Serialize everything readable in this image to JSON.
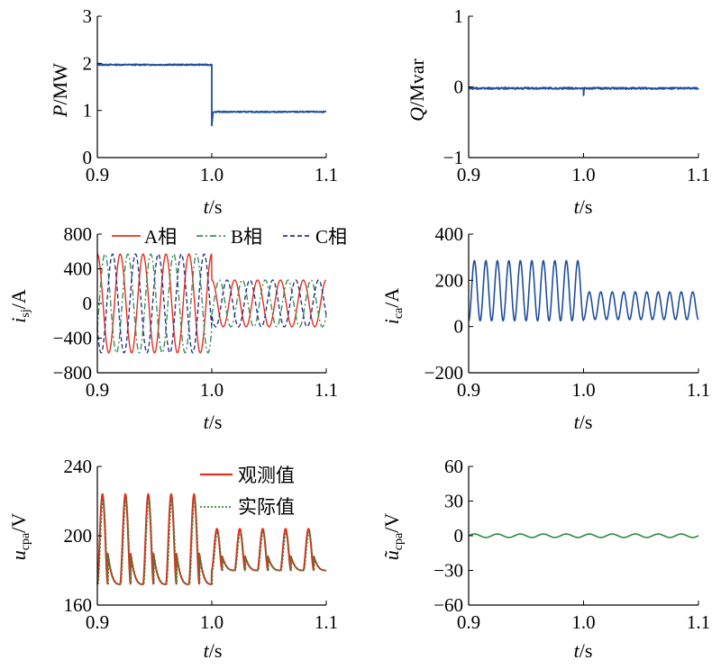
{
  "colors": {
    "blue": "#1f4e9c",
    "red": "#e03020",
    "green": "#2e8b3e",
    "navy": "#27368a",
    "tealgreen": "#3a8f5c"
  },
  "chart_data": [
    {
      "id": "p",
      "type": "line",
      "xlim": [
        0.9,
        1.1
      ],
      "ylim": [
        0,
        3
      ],
      "xticks": [
        "0.9",
        "1.0",
        "1.1"
      ],
      "yticks": [
        "0",
        "1",
        "2",
        "3"
      ],
      "xlabel": {
        "italic": "t",
        "rest": "/s"
      },
      "ylabel": {
        "italic": "P",
        "rest": "/MW"
      },
      "series": [
        {
          "color": "#1f4e9c",
          "x": [
            0.9,
            1.0,
            1.0,
            1.001,
            1.002,
            1.1
          ],
          "y": [
            1.97,
            1.97,
            0.68,
            0.95,
            0.97,
            0.97
          ]
        }
      ]
    },
    {
      "id": "q",
      "type": "line",
      "xlim": [
        0.9,
        1.1
      ],
      "ylim": [
        -1,
        1
      ],
      "xticks": [
        "0.9",
        "1.0",
        "1.1"
      ],
      "yticks": [
        "−1",
        "0",
        "1"
      ],
      "xlabel": {
        "italic": "t",
        "rest": "/s"
      },
      "ylabel": {
        "italic": "Q",
        "rest": "/Mvar"
      },
      "series": [
        {
          "color": "#1f4e9c",
          "x": [
            0.9,
            1.0,
            1.0,
            1.0005,
            1.001,
            1.1
          ],
          "y": [
            -0.02,
            -0.02,
            -0.12,
            -0.03,
            -0.02,
            -0.02
          ]
        }
      ]
    },
    {
      "id": "isj",
      "type": "line",
      "xlim": [
        0.9,
        1.1
      ],
      "ylim": [
        -800,
        800
      ],
      "xticks": [
        "0.9",
        "1.0",
        "1.1"
      ],
      "yticks": [
        "−800",
        "−400",
        "0",
        "400",
        "800"
      ],
      "xlabel": {
        "italic": "t",
        "rest": "/s"
      },
      "ylabel": {
        "italic": "i",
        "sub": "sj",
        "rest": "/A"
      },
      "legend": [
        "A相",
        "B相",
        "C相"
      ],
      "series": [
        {
          "name": "A相",
          "color": "#e03020",
          "amplitude_before": 570,
          "amplitude_after": 270,
          "frequency_hz": 50,
          "phase_deg": 90
        },
        {
          "name": "B相",
          "color": "#3a8f5c",
          "amplitude_before": 570,
          "amplitude_after": 270,
          "frequency_hz": 50,
          "phase_deg": -30
        },
        {
          "name": "C相",
          "color": "#27368a",
          "amplitude_before": 570,
          "amplitude_after": 270,
          "frequency_hz": 50,
          "phase_deg": 210
        }
      ]
    },
    {
      "id": "ica",
      "type": "line",
      "xlim": [
        0.9,
        1.1
      ],
      "ylim": [
        -200,
        400
      ],
      "xticks": [
        "0.9",
        "1.0",
        "1.1"
      ],
      "yticks": [
        "−200",
        "0",
        "200",
        "400"
      ],
      "xlabel": {
        "italic": "t",
        "rest": "/s"
      },
      "ylabel": {
        "italic": "i",
        "sub": "ca",
        "rest": "/A"
      },
      "series": [
        {
          "color": "#1f4e9c",
          "offset_before": 155,
          "amplitude_before": 130,
          "offset_after": 90,
          "amplitude_after": 60,
          "frequency_hz": 100
        }
      ]
    },
    {
      "id": "ucpa",
      "type": "line",
      "xlim": [
        0.9,
        1.1
      ],
      "ylim": [
        160,
        240
      ],
      "xticks": [
        "0.9",
        "1.0",
        "1.1"
      ],
      "yticks": [
        "160",
        "200",
        "240"
      ],
      "xlabel": {
        "italic": "t",
        "rest": "/s"
      },
      "ylabel": {
        "italic": "u",
        "sub": "cpa",
        "rest": "/V"
      },
      "legend": [
        "观测值",
        "实际值"
      ],
      "series": [
        {
          "name": "观测值",
          "color": "#e03020",
          "min_before": 172,
          "max_before": 224,
          "min_after": 180,
          "max_after": 204,
          "frequency_hz": 50
        },
        {
          "name": "实际值",
          "color": "#2e8b3e",
          "min_before": 172,
          "max_before": 221,
          "min_after": 180,
          "max_after": 202,
          "frequency_hz": 50
        }
      ]
    },
    {
      "id": "uerr",
      "type": "line",
      "xlim": [
        0.9,
        1.1
      ],
      "ylim": [
        -60,
        60
      ],
      "xticks": [
        "0.9",
        "1.0",
        "1.1"
      ],
      "yticks": [
        "−60",
        "−30",
        "0",
        "30",
        "60"
      ],
      "xlabel": {
        "italic": "t",
        "rest": "/s"
      },
      "ylabel": {
        "italic": "ũ",
        "sub": "cpa",
        "rest": "/V"
      },
      "series": [
        {
          "color": "#2e8b3e",
          "offset": 0,
          "amplitude": 1.5,
          "frequency_hz": 50
        }
      ]
    }
  ]
}
